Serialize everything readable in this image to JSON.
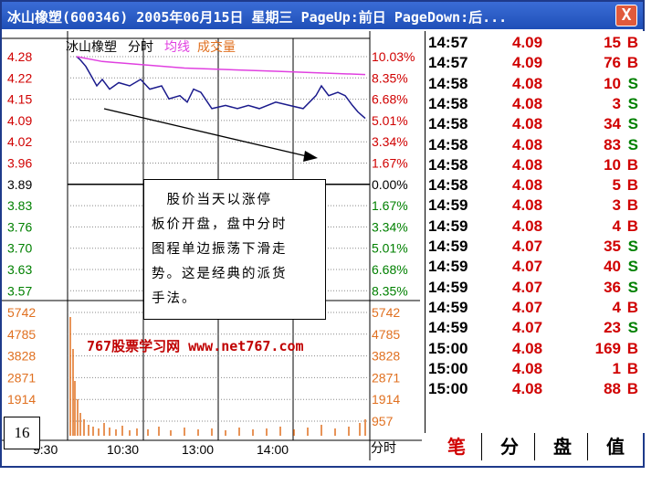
{
  "title_bar": {
    "title": "冰山橡塑(600346) 2005年06月15日 星期三 PageUp:前日 PageDown:后...",
    "close_label": "X"
  },
  "chart": {
    "stock_name": "冰山橡塑",
    "mode_label": "分时",
    "avg_label": "均线",
    "vol_label": "成交量",
    "price_ticks": [
      "4.28",
      "4.22",
      "4.15",
      "4.09",
      "4.02",
      "3.96",
      "3.89",
      "3.83",
      "3.76",
      "3.70",
      "3.63",
      "3.57"
    ],
    "pct_ticks": [
      "10.03%",
      "8.35%",
      "6.68%",
      "5.01%",
      "3.34%",
      "1.67%",
      "0.00%",
      "1.67%",
      "3.34%",
      "5.01%",
      "6.68%",
      "8.35%"
    ],
    "volume_ticks": [
      "5742",
      "4785",
      "3828",
      "2871",
      "1914",
      "957"
    ],
    "time_ticks": [
      "9:30",
      "10:30",
      "13:00",
      "14:00"
    ],
    "bottom_label": "分时",
    "colors": {
      "up": "#d00000",
      "down": "#008000",
      "neutral": "#000000",
      "price_line": "#1a1a8c",
      "avg_line": "#e040e0",
      "volume": "#e07020"
    }
  },
  "annotation": {
    "lines": [
      "　股价当天以涨停",
      "板价开盘，盘中分时",
      "图程单边振荡下滑走",
      "势。这是经典的派货",
      "手法。"
    ]
  },
  "watermark": "767股票学习网 www.net767.com",
  "page_number": "16",
  "trades": [
    {
      "time": "14:57",
      "price": "4.09",
      "vol": "15",
      "side": "B"
    },
    {
      "time": "14:57",
      "price": "4.09",
      "vol": "76",
      "side": "B"
    },
    {
      "time": "14:58",
      "price": "4.08",
      "vol": "10",
      "side": "S"
    },
    {
      "time": "14:58",
      "price": "4.08",
      "vol": "3",
      "side": "S"
    },
    {
      "time": "14:58",
      "price": "4.08",
      "vol": "34",
      "side": "S"
    },
    {
      "time": "14:58",
      "price": "4.08",
      "vol": "83",
      "side": "S"
    },
    {
      "time": "14:58",
      "price": "4.08",
      "vol": "10",
      "side": "B"
    },
    {
      "time": "14:58",
      "price": "4.08",
      "vol": "5",
      "side": "B"
    },
    {
      "time": "14:59",
      "price": "4.08",
      "vol": "3",
      "side": "B"
    },
    {
      "time": "14:59",
      "price": "4.08",
      "vol": "4",
      "side": "B"
    },
    {
      "time": "14:59",
      "price": "4.07",
      "vol": "35",
      "side": "S"
    },
    {
      "time": "14:59",
      "price": "4.07",
      "vol": "40",
      "side": "S"
    },
    {
      "time": "14:59",
      "price": "4.07",
      "vol": "36",
      "side": "S"
    },
    {
      "time": "14:59",
      "price": "4.07",
      "vol": "4",
      "side": "B"
    },
    {
      "time": "14:59",
      "price": "4.07",
      "vol": "23",
      "side": "S"
    },
    {
      "time": "15:00",
      "price": "4.08",
      "vol": "169",
      "side": "B"
    },
    {
      "time": "15:00",
      "price": "4.08",
      "vol": "1",
      "side": "B"
    },
    {
      "time": "15:00",
      "price": "4.08",
      "vol": "88",
      "side": "B"
    }
  ],
  "tabs": [
    {
      "label": "笔",
      "active": true
    },
    {
      "label": "分",
      "active": false
    },
    {
      "label": "盘",
      "active": false
    },
    {
      "label": "值",
      "active": false
    }
  ]
}
